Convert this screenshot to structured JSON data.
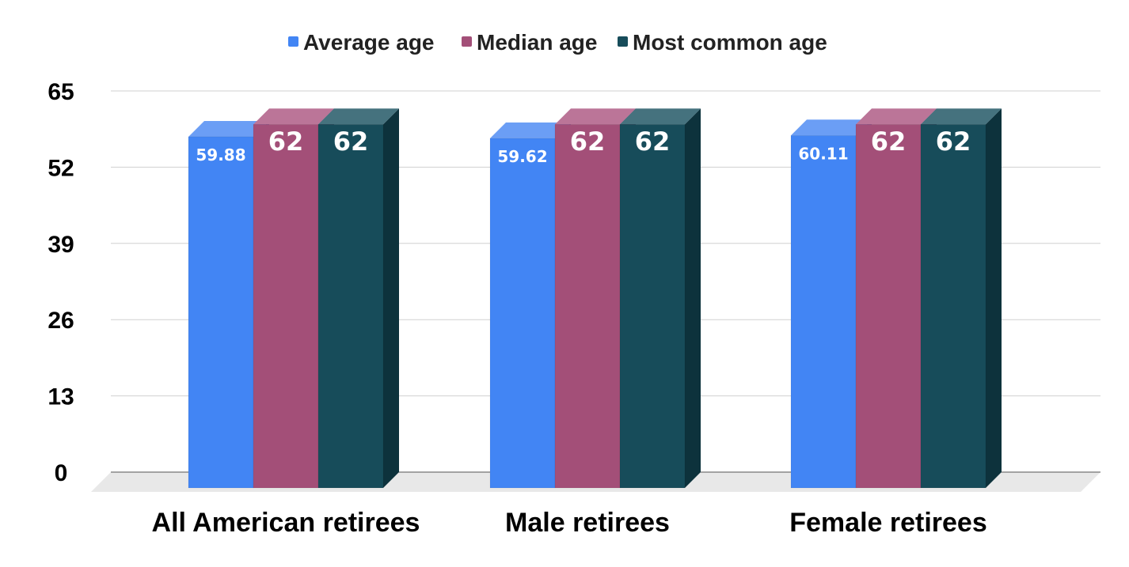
{
  "chart_data": {
    "type": "bar",
    "title": "",
    "xlabel": "",
    "ylabel": "",
    "ylim": [
      0,
      65
    ],
    "yticks": [
      0,
      13,
      26,
      39,
      52,
      65
    ],
    "grid": true,
    "legend_position": "top-center",
    "style": "3d",
    "categories": [
      "All American retirees",
      "Male retirees",
      "Female retirees"
    ],
    "series": [
      {
        "name": "Average age",
        "values": [
          59.88,
          59.62,
          60.11
        ],
        "labels": [
          "59.88",
          "59.62",
          "60.11"
        ],
        "color": "#4285f4",
        "top_color": "#6b9ef5",
        "side_color": "#2f6fd8"
      },
      {
        "name": "Median age",
        "values": [
          62,
          62,
          62
        ],
        "labels": [
          "62",
          "62",
          "62"
        ],
        "color": "#a34f78",
        "top_color": "#bb7598",
        "side_color": "#7d3a5b"
      },
      {
        "name": "Most common age",
        "values": [
          62,
          62,
          62
        ],
        "labels": [
          "62",
          "62",
          "62"
        ],
        "color": "#174c5a",
        "top_color": "#45727e",
        "side_color": "#0d323c"
      }
    ]
  }
}
